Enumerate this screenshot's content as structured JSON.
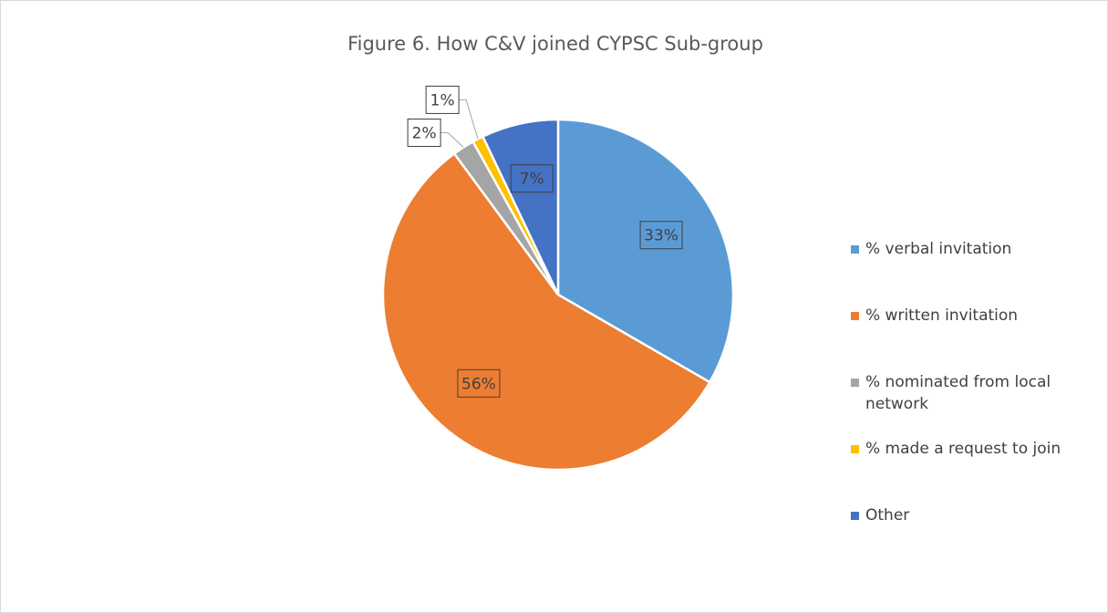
{
  "chart_data": {
    "type": "pie",
    "title": "Figure 6. How C&V joined CYPSC Sub-group",
    "categories": [
      "% verbal invitation",
      "% written invitation",
      "% nominated from local network",
      "% made a request to join",
      "Other"
    ],
    "values": [
      33,
      56,
      2,
      1,
      7
    ],
    "value_labels": [
      "33%",
      "56%",
      "2%",
      "1%",
      "7%"
    ],
    "colors": [
      "#5b9bd5",
      "#ed7d31",
      "#a5a5a5",
      "#ffc000",
      "#4472c4"
    ],
    "legend": "right"
  }
}
